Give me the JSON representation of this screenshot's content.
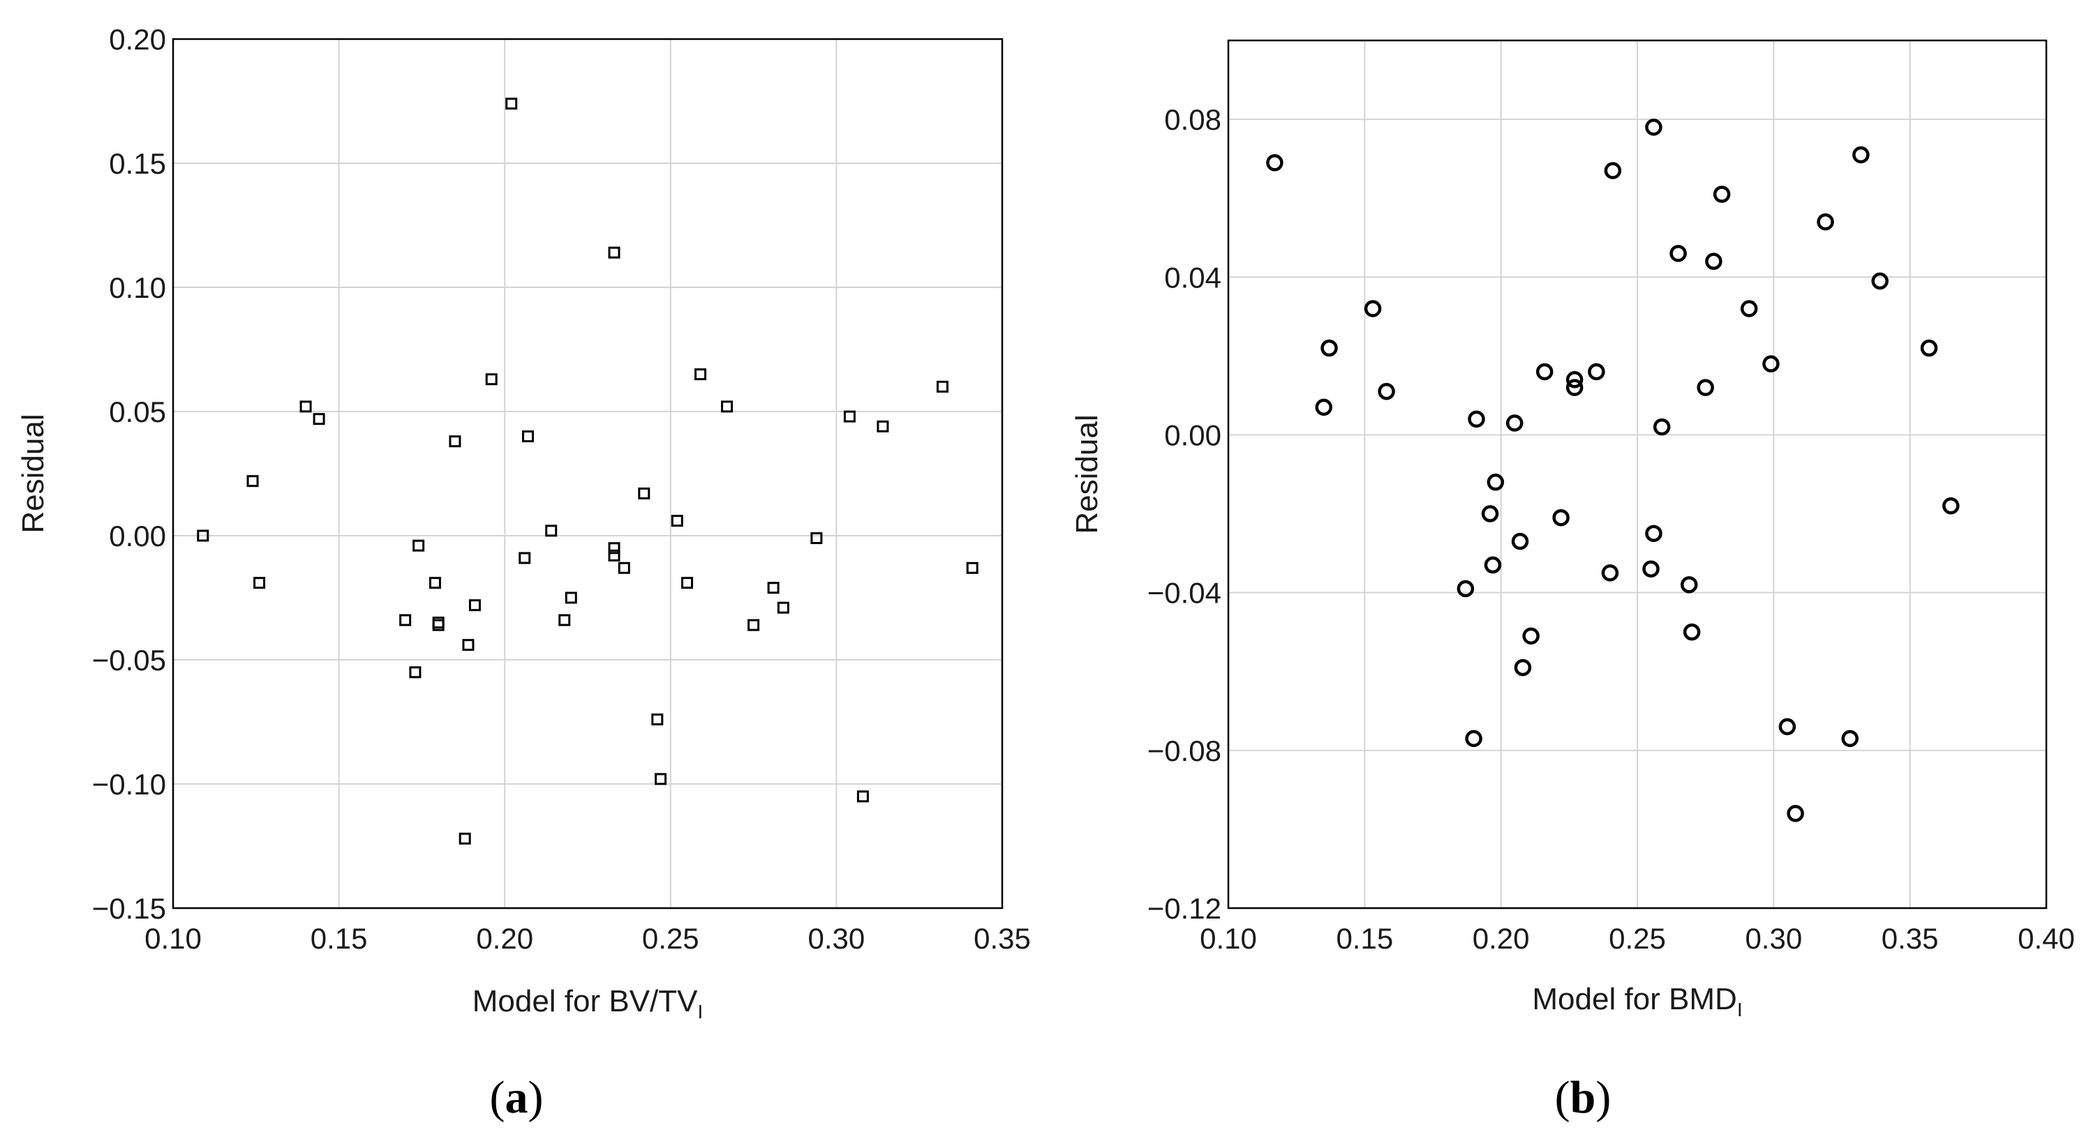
{
  "chart_data": [
    {
      "type": "scatter",
      "panel_label": "a",
      "xlabel": "Model for BV/TV",
      "xlabel_sub": "I",
      "ylabel": "Residual",
      "xlim": [
        0.1,
        0.35
      ],
      "ylim": [
        -0.15,
        0.2
      ],
      "xticks": [
        "0.10",
        "0.15",
        "0.20",
        "0.25",
        "0.30",
        "0.35"
      ],
      "yticks": [
        "0.20",
        "0.15",
        "0.10",
        "0.05",
        "0.00",
        "−0.05",
        "−0.10",
        "−0.15"
      ],
      "marker": "square",
      "x": [
        0.109,
        0.124,
        0.126,
        0.14,
        0.144,
        0.17,
        0.173,
        0.174,
        0.179,
        0.18,
        0.18,
        0.185,
        0.188,
        0.189,
        0.191,
        0.196,
        0.202,
        0.206,
        0.207,
        0.214,
        0.218,
        0.22,
        0.233,
        0.233,
        0.233,
        0.236,
        0.242,
        0.246,
        0.247,
        0.252,
        0.255,
        0.259,
        0.267,
        0.275,
        0.281,
        0.284,
        0.294,
        0.304,
        0.308,
        0.314,
        0.332,
        0.341
      ],
      "y": [
        0.0,
        0.022,
        -0.019,
        0.052,
        0.047,
        -0.034,
        -0.055,
        -0.004,
        -0.019,
        -0.035,
        -0.036,
        0.038,
        -0.122,
        -0.044,
        -0.028,
        0.063,
        0.174,
        -0.009,
        0.04,
        0.002,
        -0.034,
        -0.025,
        0.114,
        -0.005,
        -0.008,
        -0.013,
        0.017,
        -0.074,
        -0.098,
        0.006,
        -0.019,
        0.065,
        0.052,
        -0.036,
        -0.021,
        -0.029,
        -0.001,
        0.048,
        -0.105,
        0.044,
        0.06,
        -0.013
      ]
    },
    {
      "type": "scatter",
      "panel_label": "b",
      "xlabel": "Model for BMD",
      "xlabel_sub": "I",
      "ylabel": "Residual",
      "xlim": [
        0.1,
        0.4
      ],
      "ylim": [
        -0.12,
        0.1
      ],
      "xticks": [
        "0.10",
        "0.15",
        "0.20",
        "0.25",
        "0.30",
        "0.35",
        "0.40"
      ],
      "yticks": [
        "0.08",
        "0.04",
        "0.00",
        "−0.04",
        "−0.08",
        "−0.12"
      ],
      "marker": "circle",
      "x": [
        0.117,
        0.135,
        0.137,
        0.153,
        0.158,
        0.187,
        0.19,
        0.191,
        0.196,
        0.197,
        0.198,
        0.205,
        0.207,
        0.208,
        0.211,
        0.216,
        0.222,
        0.227,
        0.227,
        0.235,
        0.24,
        0.241,
        0.255,
        0.256,
        0.256,
        0.259,
        0.265,
        0.269,
        0.27,
        0.275,
        0.278,
        0.281,
        0.291,
        0.299,
        0.305,
        0.308,
        0.319,
        0.328,
        0.332,
        0.339,
        0.357,
        0.365
      ],
      "y": [
        0.069,
        0.007,
        0.022,
        0.032,
        0.011,
        -0.039,
        -0.077,
        0.004,
        -0.02,
        -0.033,
        -0.012,
        0.003,
        -0.027,
        -0.059,
        -0.051,
        0.016,
        -0.021,
        0.014,
        0.012,
        0.016,
        -0.035,
        0.067,
        -0.034,
        -0.025,
        0.078,
        0.002,
        0.046,
        -0.038,
        -0.05,
        0.012,
        0.044,
        0.061,
        0.032,
        0.018,
        -0.074,
        -0.096,
        0.054,
        -0.077,
        0.071,
        0.039,
        0.022,
        -0.018
      ]
    }
  ]
}
